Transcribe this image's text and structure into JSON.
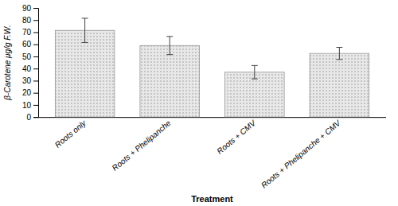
{
  "chart_data": {
    "type": "bar",
    "categories": [
      "Roots only",
      "Roots + Phelipanche",
      "Roots + CMV",
      "Roots + Phelipanche + CMV"
    ],
    "values": [
      71.5,
      59.0,
      37.0,
      52.5
    ],
    "errors": [
      10.0,
      7.5,
      5.5,
      5.0
    ],
    "color": "#e8e8e8",
    "ylabel": "β-Carotene μg/g F.W.",
    "xlabel": "Treatment",
    "ylim": [
      0,
      90
    ],
    "yticks": [
      0,
      10,
      20,
      30,
      40,
      50,
      60,
      70,
      80,
      90
    ],
    "grid": false
  }
}
